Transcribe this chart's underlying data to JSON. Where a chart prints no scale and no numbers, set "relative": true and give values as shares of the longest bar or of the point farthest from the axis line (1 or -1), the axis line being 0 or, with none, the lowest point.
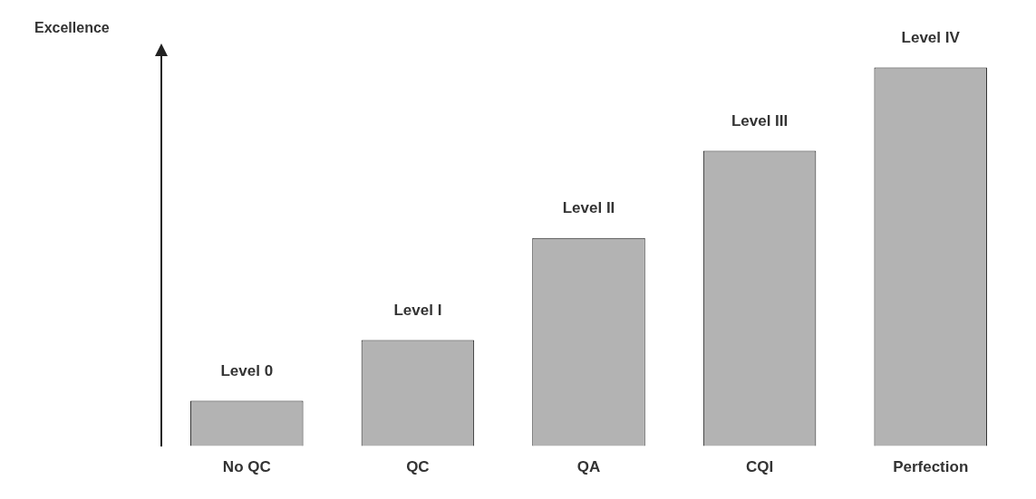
{
  "chart_data": {
    "type": "bar",
    "ylabel": "Excellence",
    "relative": true,
    "categories": [
      "No QC",
      "QC",
      "QA",
      "CQI",
      "Perfection"
    ],
    "values": [
      0.12,
      0.28,
      0.55,
      0.78,
      1.0
    ],
    "annotations": [
      {
        "text": "Level 0",
        "x": "No QC",
        "y": 0.12
      },
      {
        "text": "Level I",
        "x": "QC",
        "y": 0.28
      },
      {
        "text": "Level II",
        "x": "QA",
        "y": 0.55
      },
      {
        "text": "Level III",
        "x": "CQI",
        "y": 0.78
      },
      {
        "text": "Level IV",
        "x": "Perfection",
        "y": 1.0
      }
    ],
    "color": "#b3b3b3",
    "grid": false,
    "legend": false
  }
}
